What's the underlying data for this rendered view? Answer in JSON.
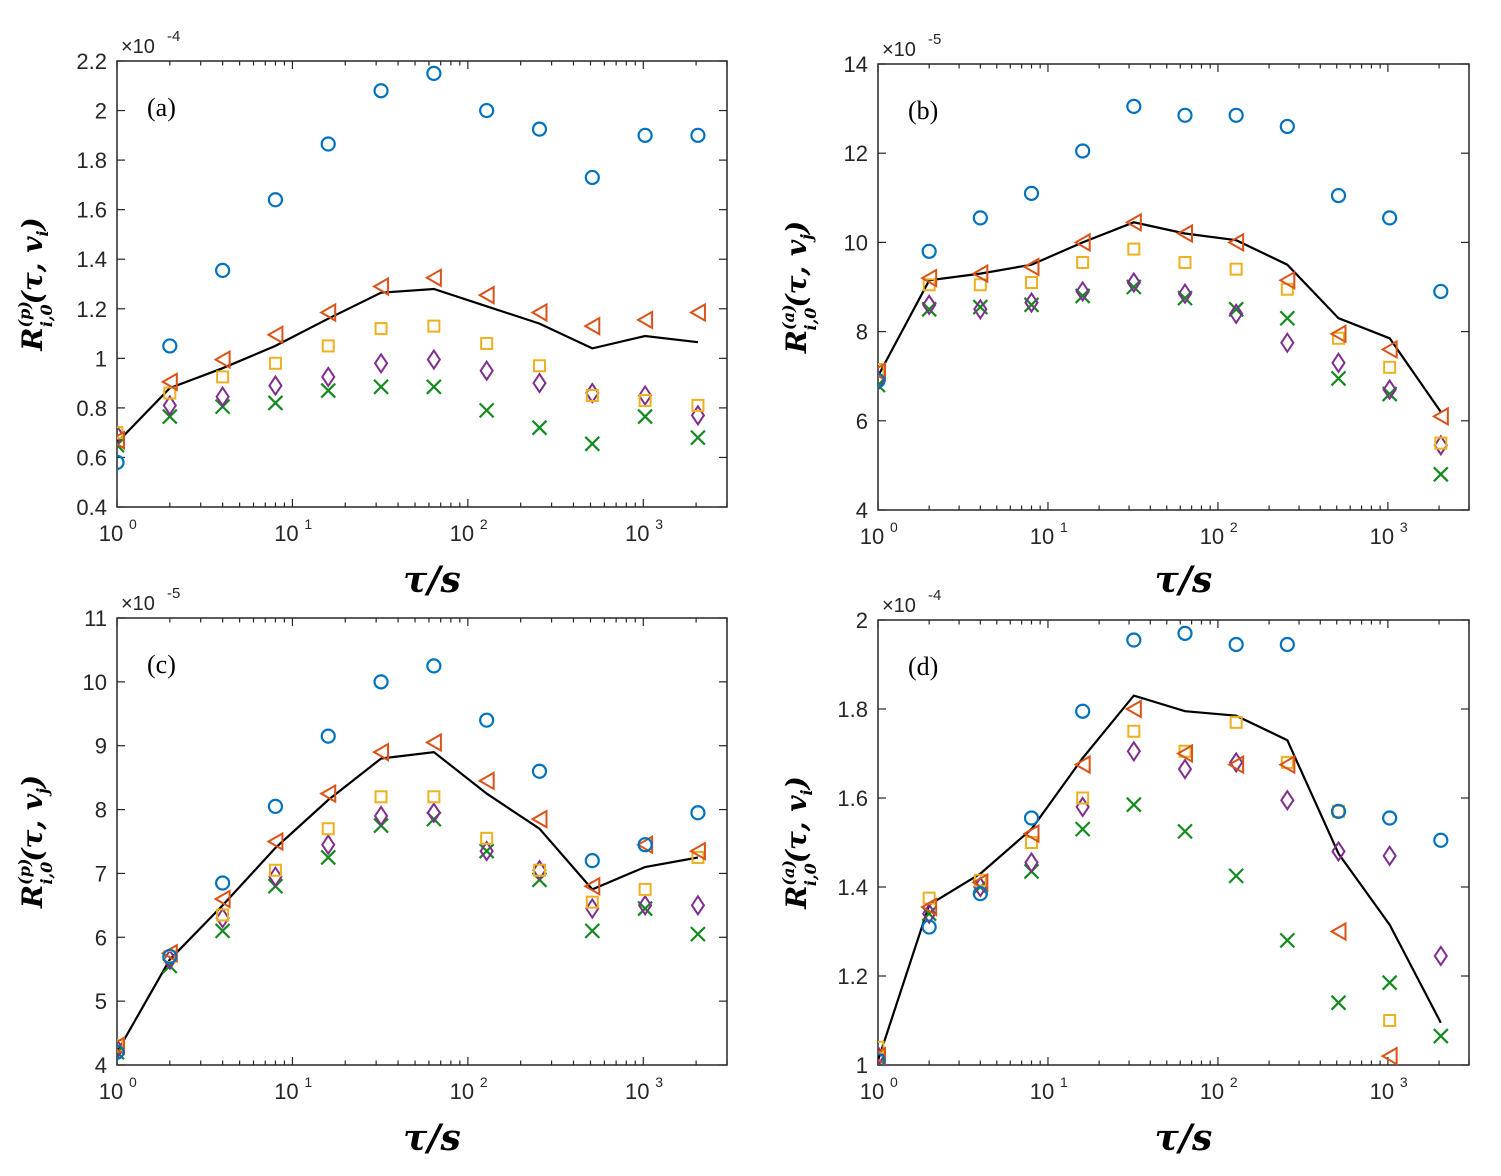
{
  "colors": {
    "circle": "#0072BD",
    "triangle": "#D95319",
    "square": "#EDB120",
    "diamond": "#7E2F8E",
    "cross": "#138A1E",
    "line": "#000000"
  },
  "chart_data": [
    {
      "type": "scatter",
      "panel_tag": "(a)",
      "xlabel": "τ/s",
      "ylabel": {
        "base": "R",
        "sub": "i,0",
        "sup": "(p)",
        "arg": "(τ, v",
        "arg_sub": "i",
        "close": ")"
      },
      "multiplier": "×10",
      "multiplier_exp": "-4",
      "xscale": "log",
      "xlim": [
        1,
        3000
      ],
      "xticks": [
        {
          "base": "10",
          "exp": "0"
        },
        {
          "base": "10",
          "exp": "1"
        },
        {
          "base": "10",
          "exp": "2"
        },
        {
          "base": "10",
          "exp": "3"
        }
      ],
      "ylim": [
        0.4,
        2.2
      ],
      "yticks": [
        "0.4",
        "0.6",
        "0.8",
        "1",
        "1.2",
        "1.4",
        "1.6",
        "1.8",
        "2",
        "2.2"
      ],
      "x": [
        1,
        2,
        4,
        8,
        16,
        32,
        64,
        128,
        256,
        512,
        1024,
        2048
      ],
      "series": [
        {
          "marker": "circle",
          "values": [
            0.58,
            1.05,
            1.355,
            1.64,
            1.865,
            2.08,
            2.15,
            2.0,
            1.925,
            1.73,
            1.9,
            1.9
          ]
        },
        {
          "marker": "triangle",
          "values": [
            0.67,
            0.905,
            0.995,
            1.095,
            1.185,
            1.29,
            1.325,
            1.255,
            1.185,
            1.13,
            1.155,
            1.185
          ]
        },
        {
          "marker": "square",
          "values": [
            0.7,
            0.86,
            0.925,
            0.98,
            1.05,
            1.12,
            1.13,
            1.06,
            0.97,
            0.85,
            0.83,
            0.81
          ]
        },
        {
          "marker": "diamond",
          "values": [
            0.69,
            0.81,
            0.845,
            0.89,
            0.925,
            0.98,
            0.995,
            0.95,
            0.9,
            0.86,
            0.85,
            0.77
          ]
        },
        {
          "marker": "cross",
          "values": [
            0.65,
            0.765,
            0.805,
            0.82,
            0.87,
            0.885,
            0.885,
            0.79,
            0.72,
            0.655,
            0.765,
            0.68
          ]
        },
        {
          "marker": "line",
          "values": [
            0.66,
            0.88,
            0.96,
            1.05,
            1.16,
            1.265,
            1.28,
            1.21,
            1.14,
            1.04,
            1.09,
            1.065
          ]
        }
      ]
    },
    {
      "type": "scatter",
      "panel_tag": "(b)",
      "xlabel": "τ/s",
      "ylabel": {
        "base": "R",
        "sub": "i,0",
        "sup": "(a)",
        "arg": "(τ, v",
        "arg_sub": "j",
        "close": ")"
      },
      "multiplier": "×10",
      "multiplier_exp": "-5",
      "xscale": "log",
      "xlim": [
        1,
        3000
      ],
      "xticks": [
        {
          "base": "10",
          "exp": "0"
        },
        {
          "base": "10",
          "exp": "1"
        },
        {
          "base": "10",
          "exp": "2"
        },
        {
          "base": "10",
          "exp": "3"
        }
      ],
      "ylim": [
        4,
        14
      ],
      "yticks": [
        "4",
        "6",
        "8",
        "10",
        "12",
        "14"
      ],
      "x": [
        1,
        2,
        4,
        8,
        16,
        32,
        64,
        128,
        256,
        512,
        1024,
        2048
      ],
      "series": [
        {
          "marker": "circle",
          "values": [
            6.9,
            9.8,
            10.55,
            11.1,
            12.05,
            13.05,
            12.85,
            12.85,
            12.6,
            11.05,
            10.55,
            8.9
          ]
        },
        {
          "marker": "triangle",
          "values": [
            7.1,
            9.2,
            9.3,
            9.45,
            10.0,
            10.45,
            10.2,
            10.0,
            9.15,
            7.95,
            7.6,
            6.1
          ]
        },
        {
          "marker": "square",
          "values": [
            7.15,
            9.05,
            9.05,
            9.1,
            9.55,
            9.85,
            9.55,
            9.4,
            8.95,
            7.85,
            7.2,
            5.5
          ]
        },
        {
          "marker": "diamond",
          "values": [
            6.9,
            8.6,
            8.5,
            8.65,
            8.9,
            9.1,
            8.85,
            8.4,
            7.75,
            7.3,
            6.7,
            5.45
          ]
        },
        {
          "marker": "cross",
          "values": [
            6.8,
            8.5,
            8.55,
            8.6,
            8.8,
            9.0,
            8.75,
            8.5,
            8.3,
            6.95,
            6.6,
            4.8
          ]
        },
        {
          "marker": "line",
          "values": [
            7.0,
            9.15,
            9.3,
            9.5,
            10.0,
            10.45,
            10.2,
            10.05,
            9.5,
            8.3,
            7.85,
            6.2
          ]
        }
      ]
    },
    {
      "type": "scatter",
      "panel_tag": "(c)",
      "xlabel": "τ/s",
      "ylabel": {
        "base": "R",
        "sub": "i,0",
        "sup": "(p)",
        "arg": "(τ, v",
        "arg_sub": "j",
        "close": ")"
      },
      "multiplier": "×10",
      "multiplier_exp": "-5",
      "xscale": "log",
      "xlim": [
        1,
        3000
      ],
      "xticks": [
        {
          "base": "10",
          "exp": "0"
        },
        {
          "base": "10",
          "exp": "1"
        },
        {
          "base": "10",
          "exp": "2"
        },
        {
          "base": "10",
          "exp": "3"
        }
      ],
      "ylim": [
        4,
        11
      ],
      "yticks": [
        "4",
        "5",
        "6",
        "7",
        "8",
        "9",
        "10",
        "11"
      ],
      "x": [
        1,
        2,
        4,
        8,
        16,
        32,
        64,
        128,
        256,
        512,
        1024,
        2048
      ],
      "series": [
        {
          "marker": "circle",
          "values": [
            4.2,
            5.7,
            6.85,
            8.05,
            9.15,
            10.0,
            10.25,
            9.4,
            8.6,
            7.2,
            7.45,
            7.95
          ]
        },
        {
          "marker": "triangle",
          "values": [
            4.3,
            5.75,
            6.6,
            7.5,
            8.25,
            8.9,
            9.05,
            8.45,
            7.85,
            6.8,
            7.45,
            7.35
          ]
        },
        {
          "marker": "square",
          "values": [
            4.3,
            5.7,
            6.35,
            7.05,
            7.7,
            8.2,
            8.2,
            7.55,
            7.05,
            6.55,
            6.75,
            7.25
          ]
        },
        {
          "marker": "diamond",
          "values": [
            4.25,
            5.65,
            6.3,
            6.95,
            7.45,
            7.9,
            7.95,
            7.35,
            7.05,
            6.45,
            6.5,
            6.5
          ]
        },
        {
          "marker": "cross",
          "values": [
            4.2,
            5.55,
            6.1,
            6.8,
            7.25,
            7.75,
            7.85,
            7.35,
            6.9,
            6.1,
            6.45,
            6.05
          ]
        },
        {
          "marker": "line",
          "values": [
            4.2,
            5.65,
            6.5,
            7.4,
            8.15,
            8.8,
            8.9,
            8.25,
            7.7,
            6.75,
            7.1,
            7.25
          ]
        }
      ]
    },
    {
      "type": "scatter",
      "panel_tag": "(d)",
      "xlabel": "τ/s",
      "ylabel": {
        "base": "R",
        "sub": "i,0",
        "sup": "(a)",
        "arg": "(τ, v",
        "arg_sub": "i",
        "close": ")"
      },
      "multiplier": "×10",
      "multiplier_exp": "-4",
      "xscale": "log",
      "xlim": [
        1,
        3000
      ],
      "xticks": [
        {
          "base": "10",
          "exp": "0"
        },
        {
          "base": "10",
          "exp": "1"
        },
        {
          "base": "10",
          "exp": "2"
        },
        {
          "base": "10",
          "exp": "3"
        }
      ],
      "ylim": [
        1,
        2
      ],
      "yticks": [
        "1",
        "1.2",
        "1.4",
        "1.6",
        "1.8",
        "2"
      ],
      "x": [
        1,
        2,
        4,
        8,
        16,
        32,
        64,
        128,
        256,
        512,
        1024,
        2048
      ],
      "series": [
        {
          "marker": "circle",
          "values": [
            1.01,
            1.31,
            1.385,
            1.555,
            1.795,
            1.955,
            1.97,
            1.945,
            1.945,
            1.57,
            1.555,
            1.505
          ]
        },
        {
          "marker": "triangle",
          "values": [
            1.02,
            1.355,
            1.41,
            1.52,
            1.675,
            1.8,
            1.7,
            1.675,
            1.675,
            1.3,
            1.02,
            null
          ]
        },
        {
          "marker": "square",
          "values": [
            1.04,
            1.375,
            1.415,
            1.5,
            1.6,
            1.75,
            1.705,
            1.77,
            1.68,
            1.57,
            1.1,
            null
          ]
        },
        {
          "marker": "diamond",
          "values": [
            1.02,
            1.34,
            1.4,
            1.455,
            1.58,
            1.705,
            1.665,
            1.68,
            1.595,
            1.48,
            1.47,
            1.245
          ]
        },
        {
          "marker": "cross",
          "values": [
            1.0,
            1.34,
            1.4,
            1.435,
            1.53,
            1.585,
            1.525,
            1.425,
            1.28,
            1.14,
            1.185,
            1.065
          ]
        },
        {
          "marker": "line",
          "values": [
            1.01,
            1.36,
            1.43,
            1.53,
            1.69,
            1.83,
            1.795,
            1.785,
            1.73,
            1.475,
            1.315,
            1.095
          ]
        }
      ]
    }
  ]
}
